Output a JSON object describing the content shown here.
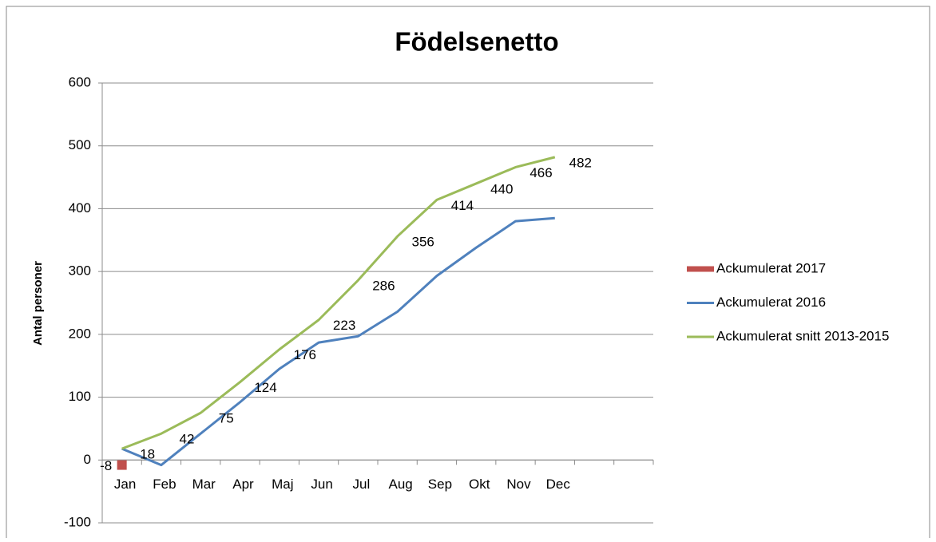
{
  "chart_data": {
    "type": "line",
    "title": "Födelsenetto",
    "y_label": "Antal personer",
    "categories": [
      "Jan",
      "Feb",
      "Mar",
      "Apr",
      "Maj",
      "Jun",
      "Jul",
      "Aug",
      "Sep",
      "Okt",
      "Nov",
      "Dec",
      null,
      null
    ],
    "series": [
      {
        "name": "Ackumulerat 2017",
        "color": "#c0504d",
        "marker": "square",
        "data_labels": true,
        "values": [
          -8,
          null,
          null,
          null,
          null,
          null,
          null,
          null,
          null,
          null,
          null,
          null,
          null,
          null
        ]
      },
      {
        "name": "Ackumulerat 2016",
        "color": "#4f81bd",
        "data_labels": false,
        "values": [
          18,
          -8,
          42,
          92,
          145,
          187,
          197,
          236,
          293,
          338,
          380,
          385,
          null,
          null
        ]
      },
      {
        "name": "Ackumulerat snitt 2013-2015",
        "color": "#9bbb59",
        "data_labels": true,
        "values": [
          18,
          42,
          75,
          124,
          176,
          223,
          286,
          356,
          414,
          440,
          466,
          482,
          null,
          null
        ]
      }
    ],
    "ylim": [
      -100,
      600
    ],
    "yticks": [
      -100,
      0,
      100,
      200,
      300,
      400,
      500,
      600
    ],
    "grid": true,
    "legend": "right"
  }
}
